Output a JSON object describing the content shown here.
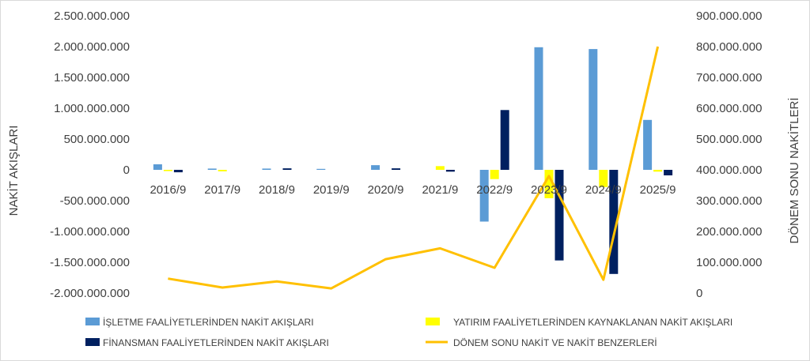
{
  "chart_data": {
    "type": "bar",
    "categories": [
      "2016/9",
      "2017/9",
      "2018/9",
      "2019/9",
      "2020/9",
      "2021/9",
      "2022/9",
      "2023/9",
      "2024/9",
      "2025/9"
    ],
    "series": [
      {
        "name": "İŞLETME FAALİYETLERİNDEN NAKİT AKIŞLARI",
        "type": "bar",
        "axis": "left",
        "color": "#5b9bd5",
        "values": [
          90000000,
          20000000,
          20000000,
          15000000,
          75000000,
          0,
          -840000000,
          1990000000,
          1960000000,
          810000000
        ]
      },
      {
        "name": "YATIRIM FAALİYETLERİNDEN KAYNAKLANAN NAKİT AKIŞLARI",
        "type": "bar",
        "axis": "left",
        "color": "#ffff00",
        "values": [
          -20000000,
          -25000000,
          0,
          0,
          0,
          60000000,
          -150000000,
          -460000000,
          -280000000,
          -30000000
        ]
      },
      {
        "name": "FİNANSMAN FAALİYETLERİNDEN NAKİT AKIŞLARI",
        "type": "bar",
        "axis": "left",
        "color": "#002060",
        "values": [
          -40000000,
          0,
          25000000,
          0,
          25000000,
          -30000000,
          970000000,
          -1470000000,
          -1690000000,
          -90000000
        ]
      },
      {
        "name": "DÖNEM SONU NAKİT VE NAKİT BENZERLERİ",
        "type": "line",
        "axis": "right",
        "color": "#ffc000",
        "values": [
          47000000,
          18000000,
          38000000,
          15000000,
          110000000,
          145000000,
          82000000,
          380000000,
          43000000,
          800000000
        ]
      }
    ],
    "ylabel": "NAKİT AKIŞLARI",
    "y2label": "DÖNEM SONU NAKİTLERİ",
    "ylim": [
      -2000000000,
      2500000000
    ],
    "y2lim": [
      0,
      900000000
    ],
    "yticks": [
      2500000000,
      2000000000,
      1500000000,
      1000000000,
      500000000,
      0,
      -500000000,
      -1000000000,
      -1500000000,
      -2000000000
    ],
    "ytick_labels": [
      "2.500.000.000",
      "2.000.000.000",
      "1.500.000.000",
      "1.000.000.000",
      "500.000.000",
      "0",
      "-500.000.000",
      "-1.000.000.000",
      "-1.500.000.000",
      "-2.000.000.000"
    ],
    "y2ticks": [
      900000000,
      800000000,
      700000000,
      600000000,
      500000000,
      400000000,
      300000000,
      200000000,
      100000000,
      0
    ],
    "y2tick_labels": [
      "900.000.000",
      "800.000.000",
      "700.000.000",
      "600.000.000",
      "500.000.000",
      "400.000.000",
      "300.000.000",
      "200.000.000",
      "100.000.000",
      "0"
    ],
    "grid": false,
    "legend": "bottom"
  }
}
